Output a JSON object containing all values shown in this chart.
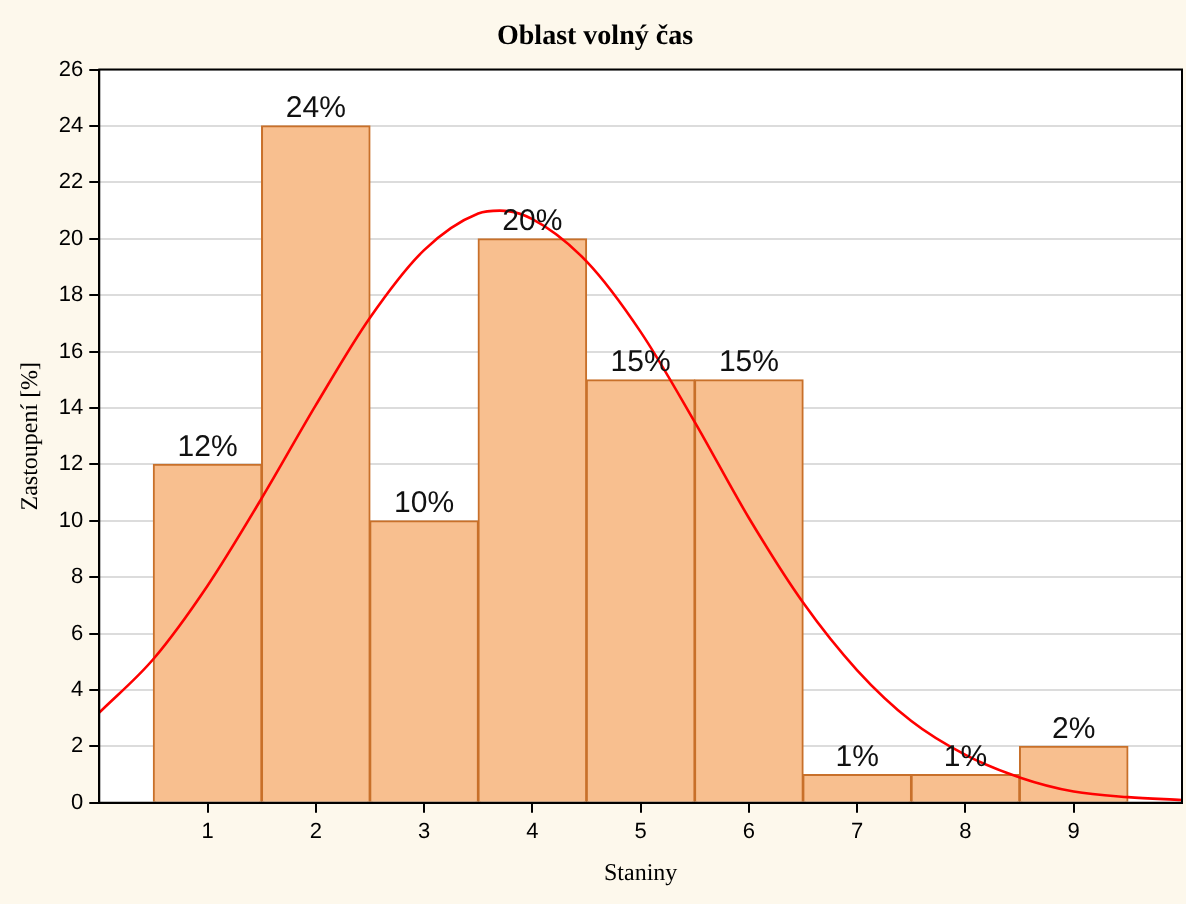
{
  "chart_data": {
    "type": "histogram",
    "title": "Oblast volný čas",
    "xlabel": "Staniny",
    "ylabel": "Zastoupení [%]",
    "bins": [
      0.5,
      1.5,
      2.5,
      3.5,
      4.5,
      5.5,
      6.5,
      7.5,
      8.5,
      9.5
    ],
    "values": [
      12,
      24,
      10,
      20,
      15,
      15,
      1,
      1,
      2
    ],
    "value_labels": [
      "12%",
      "24%",
      "10%",
      "20%",
      "15%",
      "15%",
      "1%",
      "1%",
      "2%"
    ],
    "color": "#f8bf8f",
    "series": [
      {
        "type": "line",
        "color": "#ff0000",
        "x": [
          0,
          0.5,
          1,
          1.5,
          2,
          2.5,
          3,
          3.5,
          3.7,
          4,
          4.5,
          5,
          5.5,
          6,
          6.5,
          7,
          7.5,
          8,
          8.5,
          9,
          9.5,
          10
        ],
        "values": [
          3.2,
          5.1,
          7.7,
          10.8,
          14.1,
          17.2,
          19.6,
          20.9,
          21,
          20.7,
          19.2,
          16.7,
          13.5,
          10.1,
          7.1,
          4.7,
          2.9,
          1.7,
          0.9,
          0.4,
          0.2,
          0.1
        ]
      }
    ],
    "xlim": [
      0,
      10
    ],
    "xticks": [
      1,
      2,
      3,
      4,
      5,
      6,
      7,
      8,
      9
    ],
    "ylim": [
      0,
      26
    ],
    "yticks": [
      0,
      2,
      4,
      6,
      8,
      10,
      12,
      14,
      16,
      18,
      20,
      22,
      24,
      26
    ],
    "grid": "y",
    "legend": false,
    "marker": "none",
    "line_style": "solid"
  }
}
